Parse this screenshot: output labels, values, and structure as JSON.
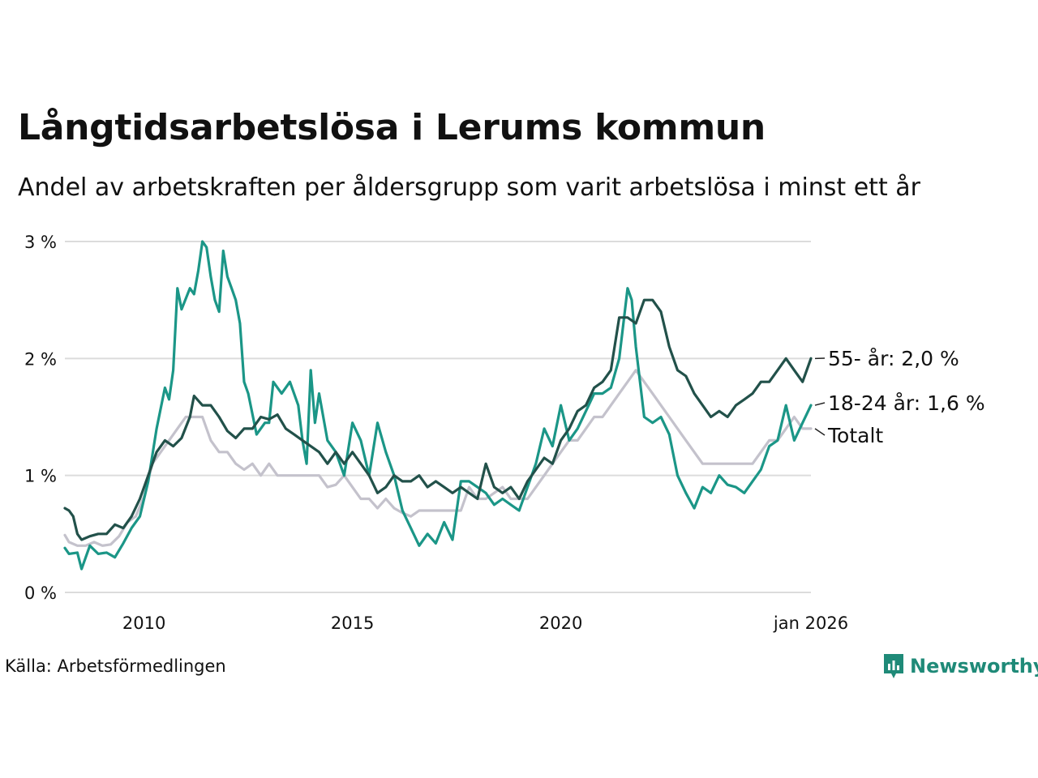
{
  "title": "Långtidsarbetslösa i Lerums kommun",
  "subtitle": "Andel av arbetskraften per åldersgrupp som varit arbetslösa i minst ett år",
  "source": "Källa: Arbetsförmedlingen",
  "brand": {
    "name": "Newsworthy",
    "icon": "newsworthy-logo-icon",
    "color": "#1f8a78"
  },
  "chart_data": {
    "type": "line",
    "title": "Långtidsarbetslösa i Lerums kommun",
    "xlabel": "",
    "ylabel": "",
    "xlim": [
      2008.1,
      2026.0
    ],
    "ylim": [
      0,
      3
    ],
    "grid": true,
    "y_ticks": [
      {
        "value": 0,
        "label": "0 %"
      },
      {
        "value": 1,
        "label": "1 %"
      },
      {
        "value": 2,
        "label": "2 %"
      },
      {
        "value": 3,
        "label": "3 %"
      }
    ],
    "x_ticks": [
      {
        "value": 2010,
        "label": "2010"
      },
      {
        "value": 2015,
        "label": "2015"
      },
      {
        "value": 2020,
        "label": "2020"
      },
      {
        "value": 2026,
        "label": "jan 2026"
      }
    ],
    "series": [
      {
        "name": "Totalt",
        "label": "Totalt",
        "color": "#c4c2cc",
        "points": [
          [
            2008.1,
            0.49
          ],
          [
            2008.2,
            0.43
          ],
          [
            2008.4,
            0.4
          ],
          [
            2008.6,
            0.4
          ],
          [
            2008.8,
            0.43
          ],
          [
            2009.0,
            0.4
          ],
          [
            2009.2,
            0.41
          ],
          [
            2009.4,
            0.48
          ],
          [
            2009.6,
            0.6
          ],
          [
            2009.8,
            0.65
          ],
          [
            2010.0,
            0.82
          ],
          [
            2010.2,
            1.1
          ],
          [
            2010.4,
            1.2
          ],
          [
            2010.6,
            1.3
          ],
          [
            2010.8,
            1.4
          ],
          [
            2011.0,
            1.5
          ],
          [
            2011.2,
            1.5
          ],
          [
            2011.4,
            1.5
          ],
          [
            2011.6,
            1.3
          ],
          [
            2011.8,
            1.2
          ],
          [
            2012.0,
            1.2
          ],
          [
            2012.2,
            1.1
          ],
          [
            2012.4,
            1.05
          ],
          [
            2012.6,
            1.1
          ],
          [
            2012.8,
            1.0
          ],
          [
            2013.0,
            1.1
          ],
          [
            2013.2,
            1.0
          ],
          [
            2013.4,
            1.0
          ],
          [
            2013.6,
            1.0
          ],
          [
            2013.8,
            1.0
          ],
          [
            2014.0,
            1.0
          ],
          [
            2014.2,
            1.0
          ],
          [
            2014.4,
            0.9
          ],
          [
            2014.6,
            0.92
          ],
          [
            2014.8,
            1.0
          ],
          [
            2015.0,
            0.9
          ],
          [
            2015.2,
            0.8
          ],
          [
            2015.4,
            0.8
          ],
          [
            2015.6,
            0.72
          ],
          [
            2015.8,
            0.8
          ],
          [
            2016.0,
            0.72
          ],
          [
            2016.2,
            0.68
          ],
          [
            2016.4,
            0.65
          ],
          [
            2016.6,
            0.7
          ],
          [
            2016.8,
            0.7
          ],
          [
            2017.0,
            0.7
          ],
          [
            2017.2,
            0.7
          ],
          [
            2017.4,
            0.7
          ],
          [
            2017.6,
            0.7
          ],
          [
            2017.8,
            0.9
          ],
          [
            2018.0,
            0.8
          ],
          [
            2018.2,
            0.8
          ],
          [
            2018.4,
            0.85
          ],
          [
            2018.6,
            0.9
          ],
          [
            2018.8,
            0.8
          ],
          [
            2019.0,
            0.8
          ],
          [
            2019.2,
            0.8
          ],
          [
            2019.4,
            0.9
          ],
          [
            2019.6,
            1.0
          ],
          [
            2019.8,
            1.1
          ],
          [
            2020.0,
            1.2
          ],
          [
            2020.2,
            1.3
          ],
          [
            2020.4,
            1.3
          ],
          [
            2020.6,
            1.4
          ],
          [
            2020.8,
            1.5
          ],
          [
            2021.0,
            1.5
          ],
          [
            2021.2,
            1.6
          ],
          [
            2021.4,
            1.7
          ],
          [
            2021.6,
            1.8
          ],
          [
            2021.8,
            1.9
          ],
          [
            2022.0,
            1.8
          ],
          [
            2022.2,
            1.7
          ],
          [
            2022.4,
            1.6
          ],
          [
            2022.6,
            1.5
          ],
          [
            2022.8,
            1.4
          ],
          [
            2023.0,
            1.3
          ],
          [
            2023.2,
            1.2
          ],
          [
            2023.4,
            1.1
          ],
          [
            2023.6,
            1.1
          ],
          [
            2023.8,
            1.1
          ],
          [
            2024.0,
            1.1
          ],
          [
            2024.2,
            1.1
          ],
          [
            2024.4,
            1.1
          ],
          [
            2024.6,
            1.1
          ],
          [
            2024.8,
            1.2
          ],
          [
            2025.0,
            1.3
          ],
          [
            2025.2,
            1.3
          ],
          [
            2025.4,
            1.4
          ],
          [
            2025.6,
            1.5
          ],
          [
            2025.8,
            1.4
          ],
          [
            2026.0,
            1.4
          ]
        ]
      },
      {
        "name": "18-24 år",
        "label": "18-24 år: 1,6 %",
        "color": "#1b9687",
        "points": [
          [
            2008.1,
            0.38
          ],
          [
            2008.2,
            0.33
          ],
          [
            2008.4,
            0.34
          ],
          [
            2008.5,
            0.2
          ],
          [
            2008.7,
            0.4
          ],
          [
            2008.9,
            0.33
          ],
          [
            2009.1,
            0.34
          ],
          [
            2009.3,
            0.3
          ],
          [
            2009.5,
            0.42
          ],
          [
            2009.7,
            0.55
          ],
          [
            2009.9,
            0.65
          ],
          [
            2010.1,
            0.95
          ],
          [
            2010.3,
            1.4
          ],
          [
            2010.5,
            1.75
          ],
          [
            2010.6,
            1.65
          ],
          [
            2010.7,
            1.9
          ],
          [
            2010.8,
            2.6
          ],
          [
            2010.9,
            2.42
          ],
          [
            2011.1,
            2.6
          ],
          [
            2011.2,
            2.55
          ],
          [
            2011.3,
            2.75
          ],
          [
            2011.4,
            3.0
          ],
          [
            2011.5,
            2.95
          ],
          [
            2011.6,
            2.7
          ],
          [
            2011.7,
            2.5
          ],
          [
            2011.8,
            2.4
          ],
          [
            2011.9,
            2.92
          ],
          [
            2012.0,
            2.7
          ],
          [
            2012.1,
            2.6
          ],
          [
            2012.2,
            2.5
          ],
          [
            2012.3,
            2.3
          ],
          [
            2012.4,
            1.8
          ],
          [
            2012.5,
            1.7
          ],
          [
            2012.7,
            1.35
          ],
          [
            2012.9,
            1.45
          ],
          [
            2013.0,
            1.45
          ],
          [
            2013.1,
            1.8
          ],
          [
            2013.3,
            1.7
          ],
          [
            2013.5,
            1.8
          ],
          [
            2013.7,
            1.6
          ],
          [
            2013.8,
            1.3
          ],
          [
            2013.9,
            1.1
          ],
          [
            2014.0,
            1.9
          ],
          [
            2014.1,
            1.45
          ],
          [
            2014.2,
            1.7
          ],
          [
            2014.4,
            1.3
          ],
          [
            2014.6,
            1.2
          ],
          [
            2014.8,
            1.0
          ],
          [
            2015.0,
            1.45
          ],
          [
            2015.2,
            1.3
          ],
          [
            2015.4,
            1.0
          ],
          [
            2015.6,
            1.45
          ],
          [
            2015.8,
            1.2
          ],
          [
            2016.0,
            1.0
          ],
          [
            2016.2,
            0.7
          ],
          [
            2016.4,
            0.55
          ],
          [
            2016.6,
            0.4
          ],
          [
            2016.8,
            0.5
          ],
          [
            2017.0,
            0.42
          ],
          [
            2017.2,
            0.6
          ],
          [
            2017.4,
            0.45
          ],
          [
            2017.6,
            0.95
          ],
          [
            2017.8,
            0.95
          ],
          [
            2018.0,
            0.9
          ],
          [
            2018.2,
            0.85
          ],
          [
            2018.4,
            0.75
          ],
          [
            2018.6,
            0.8
          ],
          [
            2018.8,
            0.75
          ],
          [
            2019.0,
            0.7
          ],
          [
            2019.2,
            0.9
          ],
          [
            2019.4,
            1.1
          ],
          [
            2019.6,
            1.4
          ],
          [
            2019.8,
            1.25
          ],
          [
            2020.0,
            1.6
          ],
          [
            2020.2,
            1.3
          ],
          [
            2020.4,
            1.4
          ],
          [
            2020.6,
            1.55
          ],
          [
            2020.8,
            1.7
          ],
          [
            2021.0,
            1.7
          ],
          [
            2021.2,
            1.75
          ],
          [
            2021.4,
            2.0
          ],
          [
            2021.6,
            2.6
          ],
          [
            2021.7,
            2.5
          ],
          [
            2021.8,
            2.1
          ],
          [
            2022.0,
            1.5
          ],
          [
            2022.2,
            1.45
          ],
          [
            2022.4,
            1.5
          ],
          [
            2022.6,
            1.35
          ],
          [
            2022.8,
            1.0
          ],
          [
            2023.0,
            0.85
          ],
          [
            2023.2,
            0.72
          ],
          [
            2023.4,
            0.9
          ],
          [
            2023.6,
            0.85
          ],
          [
            2023.8,
            1.0
          ],
          [
            2024.0,
            0.92
          ],
          [
            2024.2,
            0.9
          ],
          [
            2024.4,
            0.85
          ],
          [
            2024.6,
            0.95
          ],
          [
            2024.8,
            1.05
          ],
          [
            2025.0,
            1.25
          ],
          [
            2025.2,
            1.3
          ],
          [
            2025.4,
            1.6
          ],
          [
            2025.6,
            1.3
          ],
          [
            2025.8,
            1.45
          ],
          [
            2026.0,
            1.6
          ]
        ]
      },
      {
        "name": "55- år",
        "label": "55- år: 2,0 %",
        "color": "#22514a",
        "points": [
          [
            2008.1,
            0.72
          ],
          [
            2008.2,
            0.7
          ],
          [
            2008.3,
            0.65
          ],
          [
            2008.4,
            0.5
          ],
          [
            2008.5,
            0.45
          ],
          [
            2008.7,
            0.48
          ],
          [
            2008.9,
            0.5
          ],
          [
            2009.1,
            0.5
          ],
          [
            2009.3,
            0.58
          ],
          [
            2009.5,
            0.55
          ],
          [
            2009.7,
            0.65
          ],
          [
            2009.9,
            0.8
          ],
          [
            2010.1,
            1.0
          ],
          [
            2010.3,
            1.2
          ],
          [
            2010.5,
            1.3
          ],
          [
            2010.7,
            1.25
          ],
          [
            2010.9,
            1.32
          ],
          [
            2011.1,
            1.5
          ],
          [
            2011.2,
            1.68
          ],
          [
            2011.4,
            1.6
          ],
          [
            2011.6,
            1.6
          ],
          [
            2011.8,
            1.5
          ],
          [
            2012.0,
            1.38
          ],
          [
            2012.2,
            1.32
          ],
          [
            2012.4,
            1.4
          ],
          [
            2012.6,
            1.4
          ],
          [
            2012.8,
            1.5
          ],
          [
            2013.0,
            1.48
          ],
          [
            2013.2,
            1.52
          ],
          [
            2013.4,
            1.4
          ],
          [
            2013.6,
            1.35
          ],
          [
            2013.8,
            1.3
          ],
          [
            2014.0,
            1.25
          ],
          [
            2014.2,
            1.2
          ],
          [
            2014.4,
            1.1
          ],
          [
            2014.6,
            1.2
          ],
          [
            2014.8,
            1.1
          ],
          [
            2015.0,
            1.2
          ],
          [
            2015.2,
            1.1
          ],
          [
            2015.4,
            1.0
          ],
          [
            2015.6,
            0.85
          ],
          [
            2015.8,
            0.9
          ],
          [
            2016.0,
            1.0
          ],
          [
            2016.2,
            0.95
          ],
          [
            2016.4,
            0.95
          ],
          [
            2016.6,
            1.0
          ],
          [
            2016.8,
            0.9
          ],
          [
            2017.0,
            0.95
          ],
          [
            2017.2,
            0.9
          ],
          [
            2017.4,
            0.85
          ],
          [
            2017.6,
            0.9
          ],
          [
            2017.8,
            0.85
          ],
          [
            2018.0,
            0.8
          ],
          [
            2018.2,
            1.1
          ],
          [
            2018.4,
            0.9
          ],
          [
            2018.6,
            0.85
          ],
          [
            2018.8,
            0.9
          ],
          [
            2019.0,
            0.8
          ],
          [
            2019.2,
            0.95
          ],
          [
            2019.4,
            1.05
          ],
          [
            2019.6,
            1.15
          ],
          [
            2019.8,
            1.1
          ],
          [
            2020.0,
            1.3
          ],
          [
            2020.2,
            1.4
          ],
          [
            2020.4,
            1.55
          ],
          [
            2020.6,
            1.6
          ],
          [
            2020.8,
            1.75
          ],
          [
            2021.0,
            1.8
          ],
          [
            2021.2,
            1.9
          ],
          [
            2021.4,
            2.35
          ],
          [
            2021.6,
            2.35
          ],
          [
            2021.8,
            2.3
          ],
          [
            2022.0,
            2.5
          ],
          [
            2022.2,
            2.5
          ],
          [
            2022.4,
            2.4
          ],
          [
            2022.6,
            2.1
          ],
          [
            2022.8,
            1.9
          ],
          [
            2023.0,
            1.85
          ],
          [
            2023.2,
            1.7
          ],
          [
            2023.4,
            1.6
          ],
          [
            2023.6,
            1.5
          ],
          [
            2023.8,
            1.55
          ],
          [
            2024.0,
            1.5
          ],
          [
            2024.2,
            1.6
          ],
          [
            2024.4,
            1.65
          ],
          [
            2024.6,
            1.7
          ],
          [
            2024.8,
            1.8
          ],
          [
            2025.0,
            1.8
          ],
          [
            2025.2,
            1.9
          ],
          [
            2025.4,
            2.0
          ],
          [
            2025.6,
            1.9
          ],
          [
            2025.8,
            1.8
          ],
          [
            2026.0,
            2.0
          ]
        ]
      }
    ]
  }
}
